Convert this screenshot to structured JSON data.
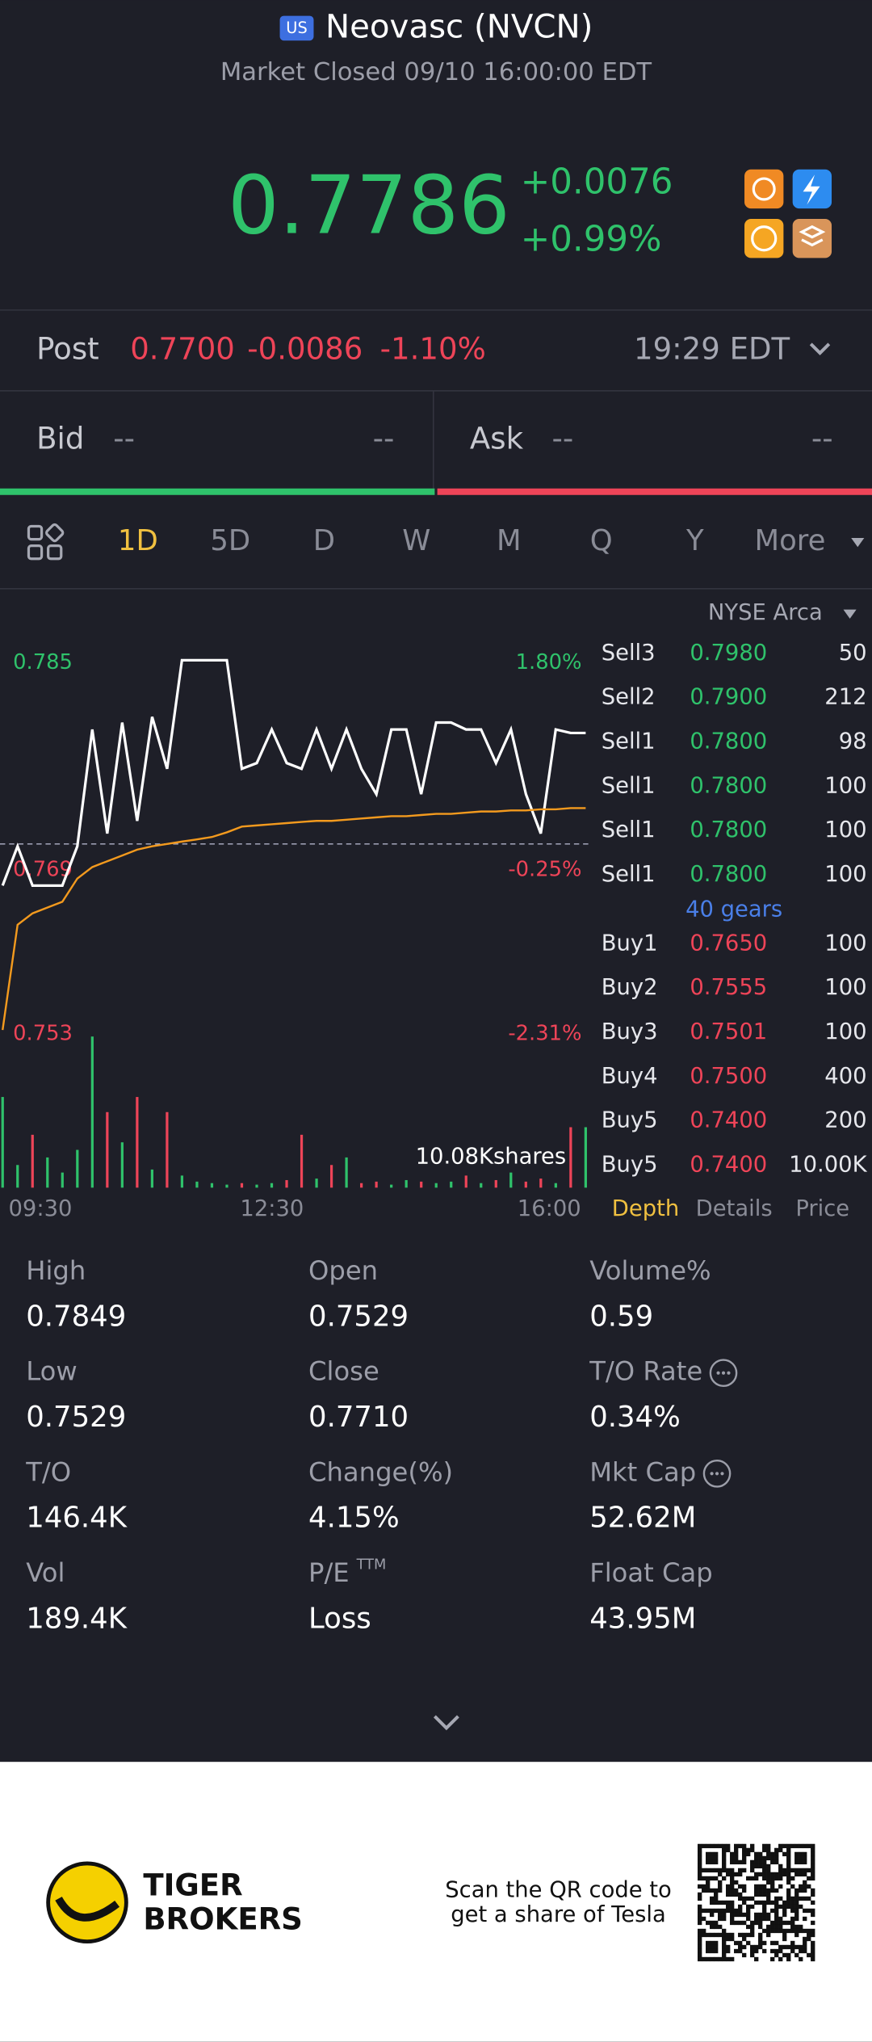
{
  "header": {
    "badge": "US",
    "title": "Neovasc (NVCN)",
    "status": "Market Closed 09/10 16:00:00 EDT"
  },
  "quote": {
    "price": "0.7786",
    "change": "+0.0076",
    "change_pct": "+0.99%"
  },
  "post": {
    "label": "Post",
    "price": "0.7700",
    "change": "-0.0086",
    "change_pct": "-1.10%",
    "time": "19:29 EDT"
  },
  "bid_ask": {
    "bid_label": "Bid",
    "bid": "--",
    "bid_size": "--",
    "ask_label": "Ask",
    "ask": "--",
    "ask_size": "--"
  },
  "tabs": [
    "1D",
    "5D",
    "D",
    "W",
    "M",
    "Q",
    "Y",
    "More"
  ],
  "chart": {
    "type": "line",
    "exchange": "NYSE Arca",
    "up_color": "#2fc26b",
    "down_color": "#ee4458",
    "ylim": [
      0.753,
      0.785
    ],
    "yticks": [
      0.753,
      0.769,
      0.785
    ],
    "pct_ticks": [
      "-2.31%",
      "-0.25%",
      "1.80%"
    ],
    "x_labels": [
      "09:30",
      "12:30",
      "16:00"
    ],
    "volume_label": "10.08Kshares",
    "vlim": [
      0,
      10080
    ],
    "series": [
      {
        "color": "#ffffff",
        "values": [
          0.7654,
          0.7688,
          0.7654,
          0.7654,
          0.7654,
          0.7688,
          0.7789,
          0.7699,
          0.7795,
          0.771,
          0.78,
          0.7755,
          0.7849,
          0.7849,
          0.7849,
          0.7849,
          0.7755,
          0.776,
          0.7789,
          0.776,
          0.7755,
          0.7789,
          0.7755,
          0.7789,
          0.7755,
          0.7733,
          0.7789,
          0.7789,
          0.7733,
          0.7795,
          0.7795,
          0.7789,
          0.7789,
          0.776,
          0.7789,
          0.7733,
          0.7699,
          0.7789,
          0.7786,
          0.7786
        ]
      },
      {
        "color": "#f39a1e",
        "values": [
          0.7529,
          0.762,
          0.763,
          0.7635,
          0.764,
          0.766,
          0.767,
          0.7675,
          0.768,
          0.7685,
          0.7688,
          0.769,
          0.7692,
          0.7694,
          0.7696,
          0.77,
          0.7705,
          0.7706,
          0.7707,
          0.7708,
          0.7709,
          0.771,
          0.771,
          0.7711,
          0.7712,
          0.7713,
          0.7714,
          0.7714,
          0.7715,
          0.7716,
          0.7716,
          0.7717,
          0.7718,
          0.7718,
          0.7719,
          0.7719,
          0.772,
          0.772,
          0.7721,
          0.7721
        ]
      }
    ],
    "volume": [
      6000,
      1500,
      3500,
      2000,
      1000,
      2500,
      10000,
      5000,
      3000,
      6000,
      1200,
      5000,
      800,
      400,
      300,
      200,
      300,
      200,
      300,
      500,
      3500,
      600,
      1500,
      2000,
      300,
      400,
      200,
      500,
      400,
      300,
      400,
      800,
      300,
      500,
      1000,
      400,
      600,
      300,
      4000,
      4000
    ]
  },
  "order_book": {
    "rows": [
      {
        "side": "Sell3",
        "price": "0.7980",
        "size": "50"
      },
      {
        "side": "Sell2",
        "price": "0.7900",
        "size": "212"
      },
      {
        "side": "Sell1",
        "price": "0.7800",
        "size": "98"
      },
      {
        "side": "Sell1",
        "price": "0.7800",
        "size": "100"
      },
      {
        "side": "Sell1",
        "price": "0.7800",
        "size": "100"
      },
      {
        "side": "Sell1",
        "price": "0.7800",
        "size": "100"
      },
      {
        "side": "Buy1",
        "price": "0.7650",
        "size": "100"
      },
      {
        "side": "Buy2",
        "price": "0.7555",
        "size": "100"
      },
      {
        "side": "Buy3",
        "price": "0.7501",
        "size": "100"
      },
      {
        "side": "Buy4",
        "price": "0.7500",
        "size": "400"
      },
      {
        "side": "Buy5",
        "price": "0.7400",
        "size": "200"
      },
      {
        "side": "Buy5",
        "price": "0.7400",
        "size": "10.00K"
      }
    ],
    "gears": "40 gears",
    "tabs": [
      "Depth",
      "Details",
      "Price"
    ]
  },
  "stats": [
    {
      "label": "High",
      "value": "0.7849"
    },
    {
      "label": "Open",
      "value": "0.7529"
    },
    {
      "label": "Volume%",
      "value": "0.59"
    },
    {
      "label": "Low",
      "value": "0.7529"
    },
    {
      "label": "Close",
      "value": "0.7710"
    },
    {
      "label": "T/O Rate",
      "value": "0.34%"
    },
    {
      "label": "T/O",
      "value": "146.4K"
    },
    {
      "label": "Change(%)",
      "value": "4.15%"
    },
    {
      "label": "Mkt Cap",
      "value": "52.62M"
    },
    {
      "label": "Vol",
      "value": "189.4K"
    },
    {
      "label": "P/E",
      "sup": "TTM",
      "value": "Loss"
    },
    {
      "label": "Float Cap",
      "value": "43.95M"
    }
  ],
  "footer": {
    "brand": [
      "TIGER",
      "BROKERS"
    ],
    "qr_text": [
      "Scan the QR code to",
      "get a share of Tesla"
    ]
  }
}
